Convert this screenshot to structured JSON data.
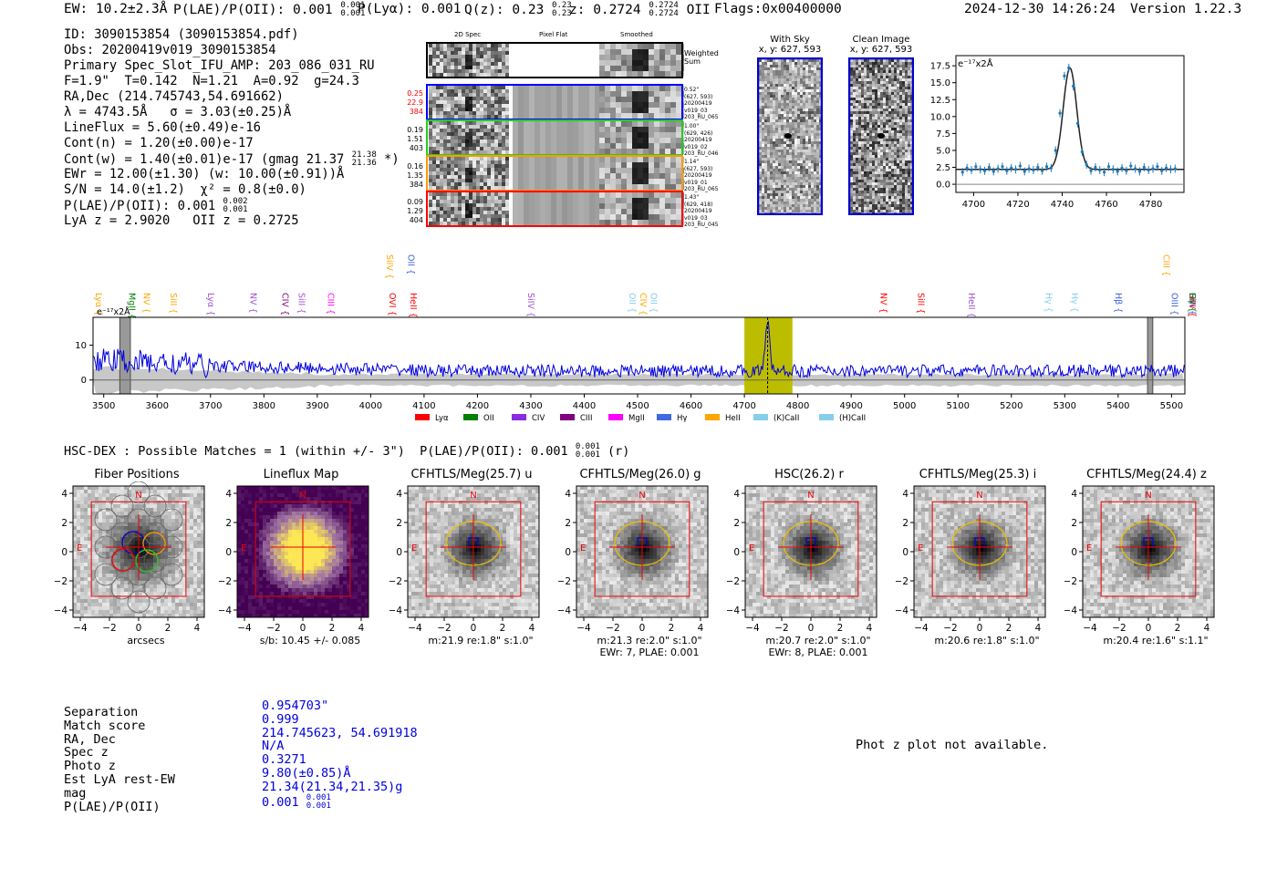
{
  "header": {
    "ew": "EW: 10.2±2.3Å",
    "plae_label": "P(LAE)/P(OII): 0.001",
    "plae_hi": "0.001",
    "plae_lo": "0.001",
    "plya": "P(Lyα): 0.001",
    "qz_label": "Q(z): 0.23",
    "qz_hi": "0.23",
    "qz_lo": "0.23",
    "z_label": "z: 0.2724",
    "z_hi": "0.2724",
    "z_lo": "0.2724",
    "z_line": "OII",
    "flags": "Flags:0x00400000",
    "timestamp": "2024-12-30 14:26:24",
    "version": "Version 1.22.3"
  },
  "info": {
    "id": "ID: 3090153854 (3090153854.pdf)",
    "obs": "Obs: 20200419v019_3090153854",
    "primary": "Primary Spec_Slot_IFU_AMP: 203_086_031_RU",
    "fit": "F=1.9\"  T=0.142  N=1.21  A=0.92  g=24.3",
    "radec": "RA,Dec (214.745743,54.691662)",
    "lambda": "λ = 4743.5Å   σ = 3.03(±0.25)Å",
    "lineflux": "LineFlux = 5.60(±0.49)e-16",
    "contn": "Cont(n) = 1.20(±0.00)e-17",
    "contw": "Cont(w) = 1.40(±0.01)e-17 (gmag 21.37",
    "contw_hi": "21.38",
    "contw_lo": "21.36",
    "contw_end": " *)",
    "ewr": "EWr = 12.00(±1.30) (w: 10.00(±0.91))Å",
    "sn": "S/N = 14.0(±1.2)  χ² = 0.8(±0.0)",
    "plae": "P(LAE)/P(OII): 0.001",
    "plae_hi": "0.002",
    "plae_lo": "0.001",
    "lya_z": "LyA z = 2.9020   OII z = 0.2725"
  },
  "cutouts_top": {
    "col_2d": "2D Spec",
    "col_flat": "Pixel Flat",
    "col_smooth": "Smoothed",
    "weighted": "Weighted\nSum",
    "rows": [
      {
        "left": [
          "0.25",
          "22.9",
          "384"
        ],
        "right": "0.52\"\n(627, 593)\n20200419\nv019_03\n203_RU_065",
        "color": "#0000ff"
      },
      {
        "left": [
          "0.19",
          "1.51",
          "403"
        ],
        "right": "1.00\"\n(629, 426)\n20200419\nv019_02\n203_RU_046",
        "color": "#22cc22"
      },
      {
        "left": [
          "0.16",
          "1.35",
          "384"
        ],
        "right": "1.14\"\n(627, 593)\n20200419\nv019_01\n203_RU_065",
        "color": "#ff9900"
      },
      {
        "left": [
          "0.09",
          "1.29",
          "404"
        ],
        "right": "1.43\"\n(629, 418)\n20200419\nv019_03\n203_RU_045",
        "color": "#ff0000"
      }
    ],
    "with_sky": "With Sky",
    "with_sky_xy": "x, y: 627, 593",
    "clean": "Clean Image",
    "clean_xy": "x, y: 627, 593"
  },
  "gauss_plot": {
    "type": "scatter",
    "unit": "e⁻¹⁷x2Å",
    "x": [
      4695,
      4697,
      4699,
      4701,
      4703,
      4705,
      4707,
      4709,
      4711,
      4713,
      4715,
      4717,
      4719,
      4721,
      4723,
      4725,
      4727,
      4729,
      4731,
      4733,
      4735,
      4737,
      4739,
      4741,
      4743,
      4745,
      4747,
      4749,
      4751,
      4753,
      4755,
      4757,
      4759,
      4761,
      4763,
      4765,
      4767,
      4769,
      4771,
      4773,
      4775,
      4777,
      4779,
      4781,
      4783,
      4785,
      4787,
      4789,
      4791
    ],
    "y": [
      1.8,
      2.4,
      2.1,
      2.6,
      2.2,
      2.0,
      2.5,
      1.9,
      2.3,
      2.6,
      2.0,
      2.4,
      2.2,
      2.7,
      1.9,
      2.3,
      2.1,
      2.5,
      2.0,
      2.6,
      2.4,
      5.0,
      10.5,
      16.0,
      17.2,
      14.5,
      9.0,
      4.8,
      2.9,
      2.0,
      2.5,
      2.1,
      1.8,
      2.6,
      2.2,
      1.9,
      2.4,
      2.0,
      2.7,
      2.3,
      1.9,
      2.5,
      2.1,
      2.3,
      2.6,
      2.0,
      2.4,
      2.2,
      2.3
    ],
    "xticks": [
      4700,
      4720,
      4740,
      4760,
      4780
    ],
    "yticks": [
      0.0,
      2.5,
      5.0,
      7.5,
      10.0,
      12.5,
      15.0,
      17.5
    ],
    "xlim": [
      4692,
      4795
    ],
    "ylim": [
      -1.2,
      19
    ]
  },
  "spectrum": {
    "type": "line",
    "unit": "e⁻¹⁷x2Å",
    "xlim": [
      3480,
      5525
    ],
    "ylim": [
      -4,
      18
    ],
    "xticks": [
      3500,
      3600,
      3700,
      3800,
      3900,
      4000,
      4100,
      4200,
      4300,
      4400,
      4500,
      4600,
      4700,
      4800,
      4900,
      5000,
      5100,
      5200,
      5300,
      5400,
      5500
    ],
    "yticks": [
      0,
      10
    ],
    "highlight": [
      4700,
      4790
    ],
    "line_at": 4743.5,
    "hatch": [
      [
        3530,
        3550
      ],
      [
        5455,
        5465
      ]
    ],
    "peak_value": 16.5,
    "lines": [
      {
        "name": "Lyα",
        "x": 3490,
        "row": 1,
        "color": "#ffa500"
      },
      {
        "name": "MgII",
        "x": 3553,
        "row": 1,
        "color": "#008000"
      },
      {
        "name": "NV",
        "x": 3580,
        "row": 1,
        "color": "#ffa500"
      },
      {
        "name": "SiII",
        "x": 3630,
        "row": 1,
        "color": "#ffa500"
      },
      {
        "name": "Lyα",
        "x": 3700,
        "row": 1,
        "color": "#a050d0"
      },
      {
        "name": "NV",
        "x": 3780,
        "row": 1,
        "color": "#a050d0"
      },
      {
        "name": "CIV",
        "x": 3840,
        "row": 1,
        "color": "#800080"
      },
      {
        "name": "SiII",
        "x": 3870,
        "row": 1,
        "color": "#a050d0"
      },
      {
        "name": "CIII",
        "x": 3925,
        "row": 1,
        "color": "#ff00ff"
      },
      {
        "name": "SiIV",
        "x": 4035,
        "row": 0,
        "color": "#ffa500"
      },
      {
        "name": "OII",
        "x": 4075,
        "row": 0,
        "color": "#4060e0"
      },
      {
        "name": "OVI",
        "x": 4040,
        "row": 1,
        "color": "#ff0000"
      },
      {
        "name": "HeII",
        "x": 4080,
        "row": 1,
        "color": "#ff0000"
      },
      {
        "name": "SiIV",
        "x": 4300,
        "row": 1,
        "color": "#a050d0"
      },
      {
        "name": "OII",
        "x": 4490,
        "row": 1,
        "color": "#87ceeb"
      },
      {
        "name": "CIV",
        "x": 4510,
        "row": 1,
        "color": "#ffa500"
      },
      {
        "name": "OII",
        "x": 4530,
        "row": 1,
        "color": "#87ceeb"
      },
      {
        "name": "NV",
        "x": 4960,
        "row": 1,
        "color": "#ff0000"
      },
      {
        "name": "SiII",
        "x": 5030,
        "row": 1,
        "color": "#ff0000"
      },
      {
        "name": "HeII",
        "x": 5125,
        "row": 1,
        "color": "#a050d0"
      },
      {
        "name": "Hγ",
        "x": 5270,
        "row": 1,
        "color": "#87ceeb"
      },
      {
        "name": "Hγ",
        "x": 5318,
        "row": 1,
        "color": "#87ceeb"
      },
      {
        "name": "Hβ",
        "x": 5400,
        "row": 1,
        "color": "#4060e0"
      },
      {
        "name": "OIII",
        "x": 5505,
        "row": 1,
        "color": "#4060e0"
      },
      {
        "name": "SiIV",
        "x": 5540,
        "row": 1,
        "color": "#ff0000"
      },
      {
        "name": "OIII",
        "x": 5560,
        "row": 1,
        "color": "#4060e0"
      },
      {
        "name": "CIII",
        "x": 5490,
        "row": 0,
        "color": "#ffa500"
      },
      {
        "name": "Hγ",
        "x": 5595,
        "row": 1,
        "color": "#008000"
      }
    ],
    "legend": [
      {
        "label": "Lyα",
        "color": "#ff0000"
      },
      {
        "label": "OII",
        "color": "#008000"
      },
      {
        "label": "CIV",
        "color": "#8a2be2"
      },
      {
        "label": "CIII",
        "color": "#800080"
      },
      {
        "label": "MgII",
        "color": "#ff00ff"
      },
      {
        "label": "Hγ",
        "color": "#4169e1"
      },
      {
        "label": "HeII",
        "color": "#ffa500"
      },
      {
        "label": "(K)CaII",
        "color": "#87ceeb"
      },
      {
        "label": "(H)CaII",
        "color": "#87ceeb"
      }
    ]
  },
  "hsc": {
    "title": "HSC-DEX : Possible Matches = 1 (within +/- 3\")  P(LAE)/P(OII): 0.001",
    "frac_hi": "0.001",
    "frac_lo": "0.001",
    "suffix": " (r)"
  },
  "cutouts": [
    {
      "title": "Fiber Positions",
      "xlabel": "arcsecs",
      "sub": "",
      "kind": "fiber"
    },
    {
      "title": "Lineflux Map",
      "xlabel": "s/b: 10.45 +/- 0.085",
      "sub": "",
      "kind": "flux"
    },
    {
      "title": "CFHTLS/Meg(25.7) u",
      "xlabel": "m:21.9  re:1.8\"  s:1.0\"",
      "sub": "",
      "kind": "img"
    },
    {
      "title": "CFHTLS/Meg(26.0) g",
      "xlabel": "m:21.3  re:2.0\"  s:1.0\"",
      "sub": "EWr: 7, PLAE: 0.001",
      "kind": "img"
    },
    {
      "title": "HSC(26.2) r",
      "xlabel": "m:20.7  re:2.0\"  s:1.0\"",
      "sub": "EWr: 8, PLAE: 0.001",
      "kind": "img"
    },
    {
      "title": "CFHTLS/Meg(25.3) i",
      "xlabel": "m:20.6  re:1.8\"  s:1.0\"",
      "sub": "",
      "kind": "img"
    },
    {
      "title": "CFHTLS/Meg(24.4) z",
      "xlabel": "m:20.4  re:1.6\"  s:1.1\"",
      "sub": "",
      "kind": "img"
    }
  ],
  "cutout_ticks": [
    "−4",
    "−2",
    "0",
    "2",
    "4"
  ],
  "compass": {
    "n": "N",
    "e": "E"
  },
  "match": {
    "labels": [
      "Separation",
      "Match score",
      "RA, Dec",
      "Spec z",
      "Photo z",
      "Est LyA rest-EW",
      "mag",
      "P(LAE)/P(OII)"
    ],
    "values": [
      "0.954703\"",
      "0.999",
      "214.745623, 54.691918",
      "N/A",
      "0.3271",
      "9.80(±0.85)Å",
      "21.34(21.34,21.35)g",
      "0.001"
    ],
    "plae_hi": "0.001",
    "plae_lo": "0.001"
  },
  "photz": "Phot z plot not available."
}
